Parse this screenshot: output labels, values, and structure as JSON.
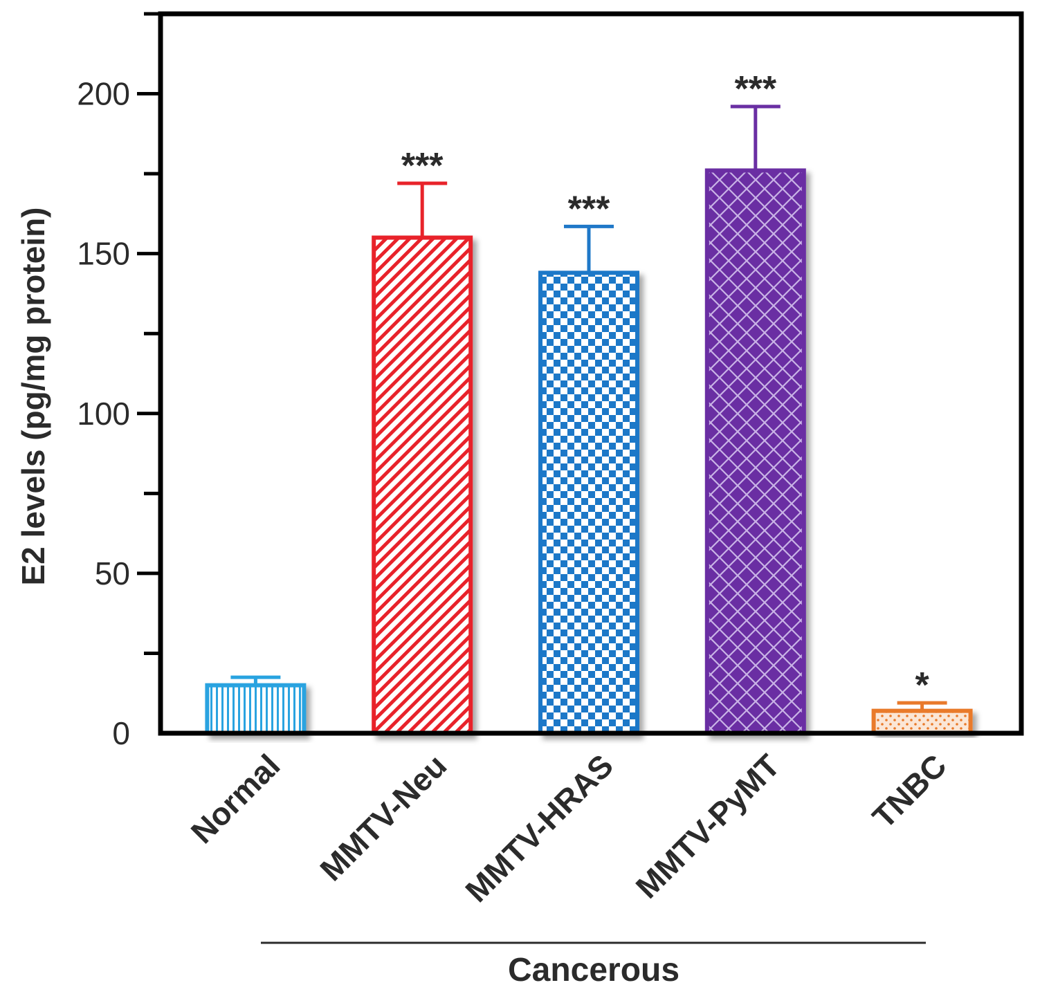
{
  "chart_data": {
    "type": "bar",
    "title": "",
    "xlabel": "",
    "ylabel": "E2 levels (pg/mg protein)",
    "ylim": [
      0,
      225
    ],
    "yticks": [
      0,
      50,
      100,
      150,
      200
    ],
    "grid": false,
    "categories": [
      "Normal",
      "MMTV-Neu",
      "MMTV-HRAS",
      "MMTV-PyMT",
      "TNBC"
    ],
    "values": [
      15,
      155,
      144,
      176,
      7
    ],
    "errors": [
      2.5,
      17,
      14.5,
      20,
      2.5
    ],
    "significance": [
      "",
      "***",
      "***",
      "***",
      "*"
    ],
    "colors": [
      "#29a3e0",
      "#e8232a",
      "#1f78c8",
      "#6a2fa3",
      "#e97a2c"
    ],
    "patterns": [
      "vertical-lines",
      "diagonal-hatch",
      "checkerboard",
      "crosshatch",
      "dots"
    ],
    "group_label": "Cancerous",
    "group_categories": [
      "MMTV-Neu",
      "MMTV-HRAS",
      "MMTV-PyMT",
      "TNBC"
    ]
  }
}
